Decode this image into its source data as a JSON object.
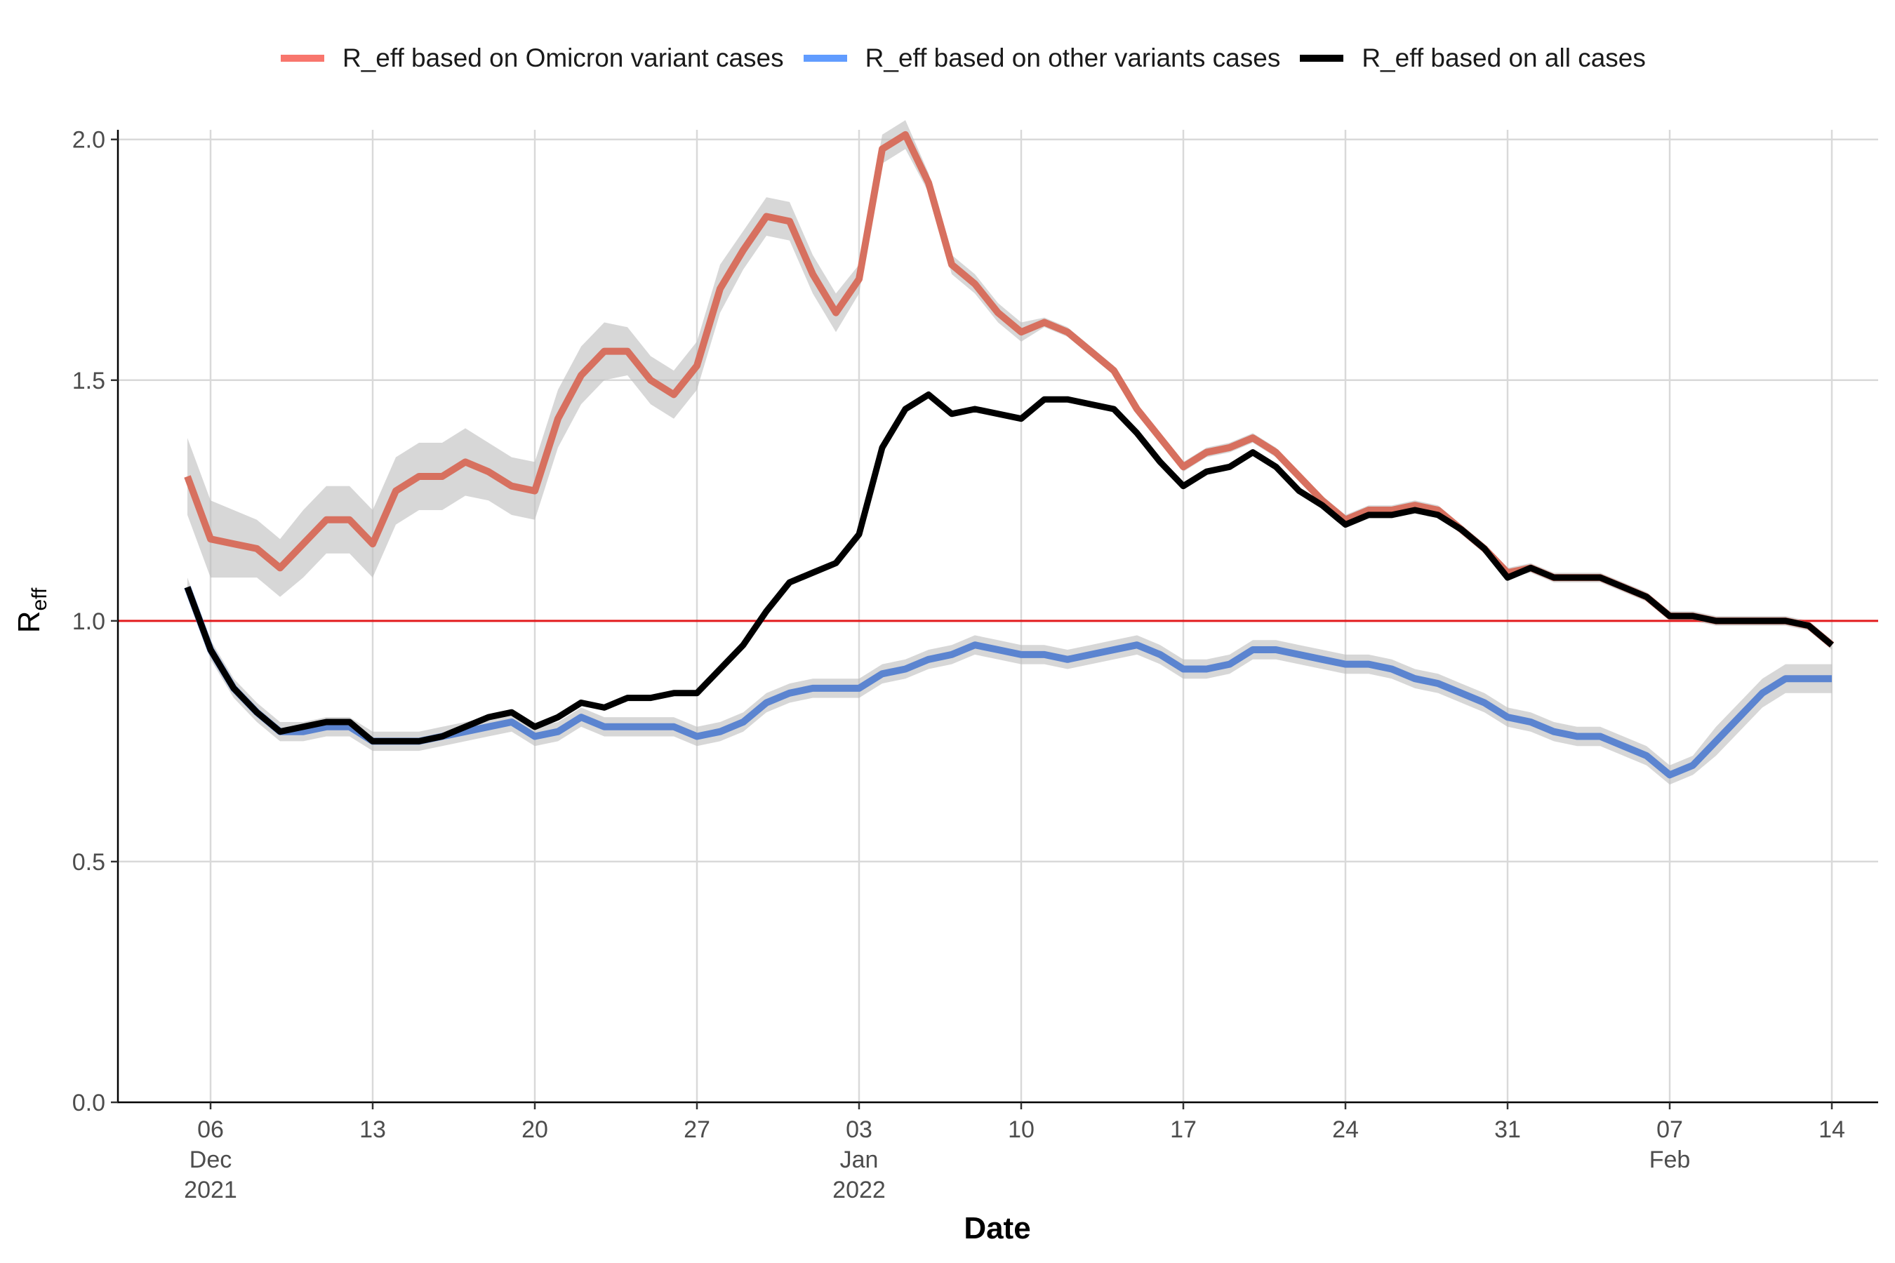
{
  "chart_data": {
    "type": "line",
    "xlabel": "Date",
    "ylabel_main": "R",
    "ylabel_sub": "eff",
    "x_tick_labels": [
      {
        "date": "2021-12-06",
        "lines": [
          "06",
          "Dec",
          "2021"
        ]
      },
      {
        "date": "2021-12-13",
        "lines": [
          "13"
        ]
      },
      {
        "date": "2021-12-20",
        "lines": [
          "20"
        ]
      },
      {
        "date": "2021-12-27",
        "lines": [
          "27"
        ]
      },
      {
        "date": "2022-01-03",
        "lines": [
          "03",
          "Jan",
          "2022"
        ]
      },
      {
        "date": "2022-01-10",
        "lines": [
          "10"
        ]
      },
      {
        "date": "2022-01-17",
        "lines": [
          "17"
        ]
      },
      {
        "date": "2022-01-24",
        "lines": [
          "24"
        ]
      },
      {
        "date": "2022-01-31",
        "lines": [
          "31"
        ]
      },
      {
        "date": "2022-02-07",
        "lines": [
          "07",
          "Feb"
        ]
      },
      {
        "date": "2022-02-14",
        "lines": [
          "14"
        ]
      }
    ],
    "y_tick_labels": [
      "0.0",
      "0.5",
      "1.0",
      "1.5",
      "2.0"
    ],
    "y_ticks": [
      0,
      0.5,
      1.0,
      1.5,
      2.0
    ],
    "xlim": [
      "2021-12-02",
      "2022-02-16"
    ],
    "ylim": [
      0,
      2.02
    ],
    "grid": true,
    "legend_position": "top",
    "reference_line": {
      "y": 1.0,
      "color": "#e31a1c"
    },
    "x_start": "2021-12-05",
    "series": [
      {
        "name": "R_eff based on Omicron variant cases",
        "legend_color": "#f8766d",
        "line_color": "#d7705f",
        "band_width": [
          0.08,
          0.08,
          0.07,
          0.06,
          0.06,
          0.07,
          0.07,
          0.07,
          0.07,
          0.07,
          0.07,
          0.07,
          0.07,
          0.06,
          0.06,
          0.06,
          0.06,
          0.06,
          0.06,
          0.05,
          0.05,
          0.05,
          0.05,
          0.05,
          0.04,
          0.04,
          0.04,
          0.04,
          0.04,
          0.03,
          0.03,
          0.03,
          0.02,
          0.02,
          0.02,
          0.02,
          0.02,
          0.01,
          0.01,
          0.01,
          0.01,
          0.01,
          0.01,
          0.01,
          0.01,
          0.01,
          0.01,
          0.01,
          0.01,
          0.01,
          0.01,
          0.01,
          0.01,
          0.01,
          0.01,
          0.01,
          0.01,
          0.01,
          0.01,
          0.01,
          0.01,
          0.01,
          0.01,
          0.01,
          0.01,
          0.01,
          0.01,
          0.01,
          0.01,
          0.01,
          0.01,
          0.01
        ],
        "values": [
          1.3,
          1.17,
          1.16,
          1.15,
          1.11,
          1.16,
          1.21,
          1.21,
          1.16,
          1.27,
          1.3,
          1.3,
          1.33,
          1.31,
          1.28,
          1.27,
          1.42,
          1.51,
          1.56,
          1.56,
          1.5,
          1.47,
          1.53,
          1.69,
          1.77,
          1.84,
          1.83,
          1.72,
          1.64,
          1.71,
          1.98,
          2.01,
          1.91,
          1.74,
          1.7,
          1.64,
          1.6,
          1.62,
          1.6,
          1.56,
          1.52,
          1.44,
          1.38,
          1.32,
          1.35,
          1.36,
          1.38,
          1.35,
          1.3,
          1.25,
          1.21,
          1.23,
          1.23,
          1.24,
          1.23,
          1.19,
          1.15,
          1.1,
          1.11,
          1.09,
          1.09,
          1.09,
          1.07,
          1.05,
          1.01,
          1.01,
          1.0,
          1.0,
          1.0,
          1.0,
          0.99,
          0.95
        ]
      },
      {
        "name": "R_eff based on other variants cases",
        "legend_color": "#619cff",
        "line_color": "#5b84d0",
        "band_width": [
          0.02,
          0.02,
          0.02,
          0.02,
          0.02,
          0.02,
          0.02,
          0.02,
          0.02,
          0.02,
          0.02,
          0.02,
          0.02,
          0.02,
          0.02,
          0.02,
          0.02,
          0.02,
          0.02,
          0.02,
          0.02,
          0.02,
          0.02,
          0.02,
          0.02,
          0.02,
          0.02,
          0.02,
          0.02,
          0.02,
          0.02,
          0.02,
          0.02,
          0.02,
          0.02,
          0.02,
          0.02,
          0.02,
          0.02,
          0.02,
          0.02,
          0.02,
          0.02,
          0.02,
          0.02,
          0.02,
          0.02,
          0.02,
          0.02,
          0.02,
          0.02,
          0.02,
          0.02,
          0.02,
          0.02,
          0.02,
          0.02,
          0.02,
          0.02,
          0.02,
          0.02,
          0.02,
          0.02,
          0.02,
          0.02,
          0.02,
          0.03,
          0.03,
          0.03,
          0.03,
          0.03,
          0.03
        ],
        "values": [
          1.07,
          0.94,
          0.86,
          0.81,
          0.77,
          0.77,
          0.78,
          0.78,
          0.75,
          0.75,
          0.75,
          0.76,
          0.77,
          0.78,
          0.79,
          0.76,
          0.77,
          0.8,
          0.78,
          0.78,
          0.78,
          0.78,
          0.76,
          0.77,
          0.79,
          0.83,
          0.85,
          0.86,
          0.86,
          0.86,
          0.89,
          0.9,
          0.92,
          0.93,
          0.95,
          0.94,
          0.93,
          0.93,
          0.92,
          0.93,
          0.94,
          0.95,
          0.93,
          0.9,
          0.9,
          0.91,
          0.94,
          0.94,
          0.93,
          0.92,
          0.91,
          0.91,
          0.9,
          0.88,
          0.87,
          0.85,
          0.83,
          0.8,
          0.79,
          0.77,
          0.76,
          0.76,
          0.74,
          0.72,
          0.68,
          0.7,
          0.75,
          0.8,
          0.85,
          0.88,
          0.88,
          0.88
        ]
      },
      {
        "name": "R_eff based on all cases",
        "legend_color": "#000000",
        "line_color": "#000000",
        "values": [
          1.07,
          0.94,
          0.86,
          0.81,
          0.77,
          0.78,
          0.79,
          0.79,
          0.75,
          0.75,
          0.75,
          0.76,
          0.78,
          0.8,
          0.81,
          0.78,
          0.8,
          0.83,
          0.82,
          0.84,
          0.84,
          0.85,
          0.85,
          0.9,
          0.95,
          1.02,
          1.08,
          1.1,
          1.12,
          1.18,
          1.36,
          1.44,
          1.47,
          1.43,
          1.44,
          1.43,
          1.42,
          1.46,
          1.46,
          1.45,
          1.44,
          1.39,
          1.33,
          1.28,
          1.31,
          1.32,
          1.35,
          1.32,
          1.27,
          1.24,
          1.2,
          1.22,
          1.22,
          1.23,
          1.22,
          1.19,
          1.15,
          1.09,
          1.11,
          1.09,
          1.09,
          1.09,
          1.07,
          1.05,
          1.01,
          1.01,
          1.0,
          1.0,
          1.0,
          1.0,
          0.99,
          0.95
        ]
      }
    ]
  }
}
